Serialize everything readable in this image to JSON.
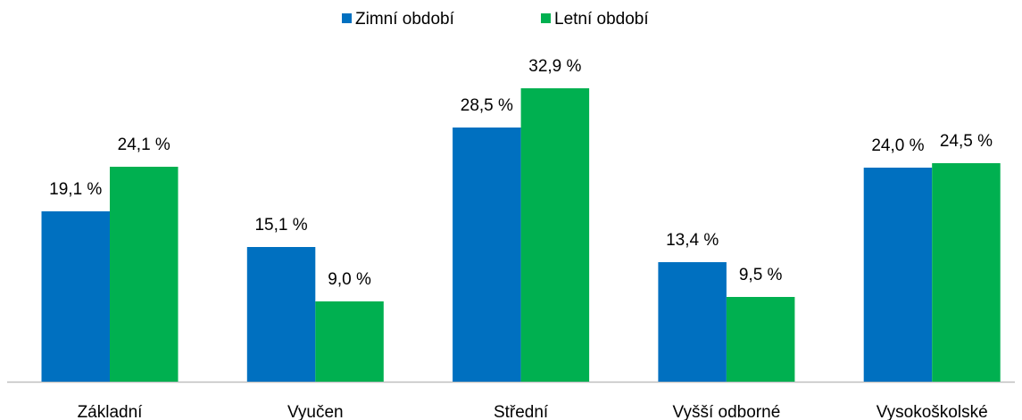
{
  "chart_data": {
    "type": "bar",
    "categories": [
      "Základní",
      "Vyučen",
      "Střední",
      "Vyšší odborné",
      "Vysokoškolské"
    ],
    "series": [
      {
        "name": "Zimní období",
        "color": "#0070c0",
        "values": [
          19.1,
          15.1,
          28.5,
          13.4,
          24.0
        ],
        "value_labels": [
          "19,1 %",
          "15,1 %",
          "28,5 %",
          "13,4 %",
          "24,0 %"
        ]
      },
      {
        "name": "Letní období",
        "color": "#00b050",
        "values": [
          24.1,
          9.0,
          32.9,
          9.5,
          24.5
        ],
        "value_labels": [
          "24,1 %",
          "9,0 %",
          "32,9 %",
          "9,5 %",
          "24,5 %"
        ]
      }
    ],
    "legend": "top"
  }
}
